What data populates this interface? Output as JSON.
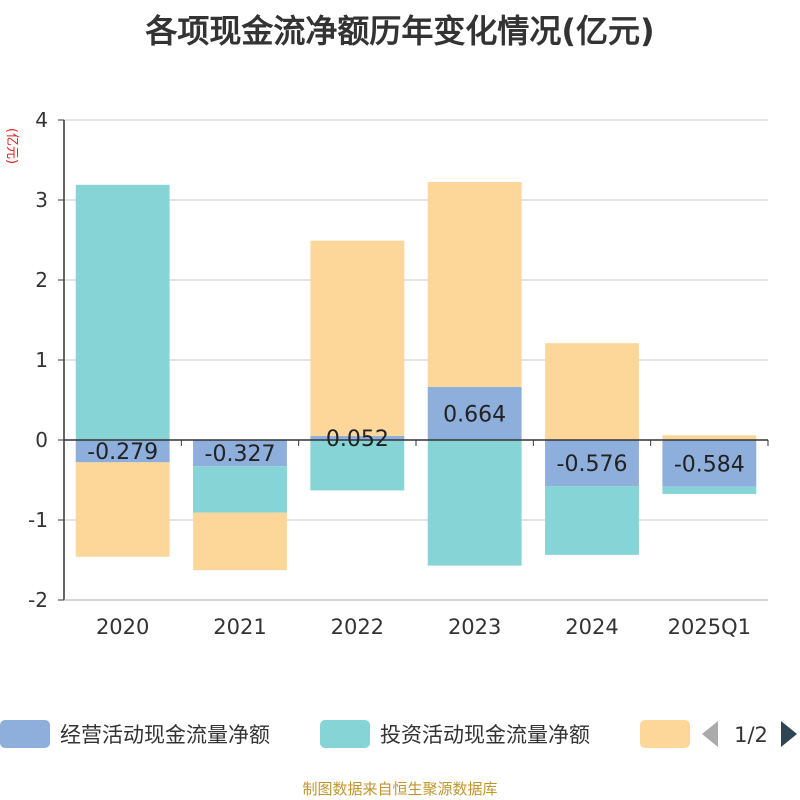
{
  "chart_data": {
    "type": "bar",
    "stacked": true,
    "title": "各项现金流净额历年变化情况(亿元)",
    "ylabel": "(亿元)",
    "xlabel": "",
    "categories": [
      "2020",
      "2021",
      "2022",
      "2023",
      "2024",
      "2025Q1"
    ],
    "ylim": [
      -2,
      4
    ],
    "yticks": [
      -2,
      -1,
      0,
      1,
      2,
      3,
      4
    ],
    "grid": true,
    "legend_position": "bottom",
    "series": [
      {
        "name": "经营活动现金流量净额",
        "color": "#8eaedb",
        "values": [
          -0.279,
          -0.327,
          0.052,
          0.664,
          -0.576,
          -0.584
        ],
        "labels": [
          "-0.279",
          "-0.327",
          "0.052",
          "0.664",
          "-0.576",
          "-0.584"
        ]
      },
      {
        "name": "投资活动现金流量净额",
        "color": "#87d4d6",
        "values": [
          3.19,
          -0.58,
          -0.63,
          -1.57,
          -0.86,
          -0.09
        ]
      },
      {
        "name": "",
        "color": "#fdd799",
        "values": [
          -1.18,
          -0.72,
          2.44,
          2.56,
          1.21,
          0.06
        ]
      }
    ]
  },
  "legend": {
    "page": "1/2"
  },
  "source_note": "制图数据来自恒生聚源数据库"
}
